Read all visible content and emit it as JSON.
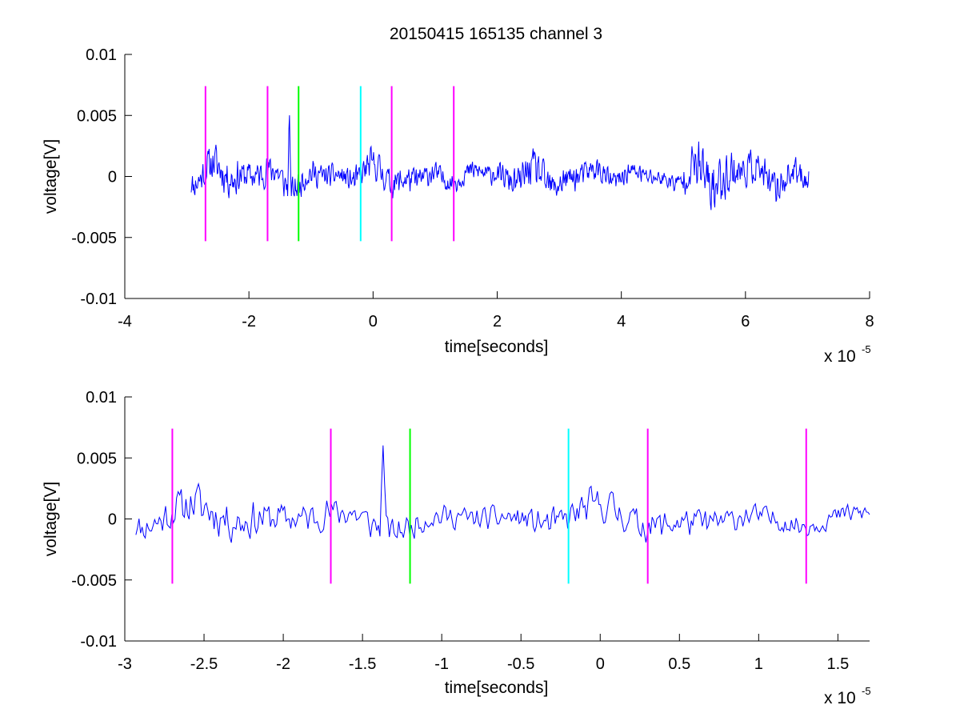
{
  "figure": {
    "background": "#ffffff",
    "trace_color": "#0000ff"
  },
  "chart_data": [
    {
      "type": "line",
      "title": "20150415 165135 channel 3",
      "xlabel": "time[seconds]",
      "ylabel": "voltage[V]",
      "x_exponent_base": "x 10",
      "x_exponent": "-5",
      "xlim": [
        -4,
        8
      ],
      "ylim": [
        -0.01,
        0.01
      ],
      "xticks": [
        -4,
        -2,
        0,
        2,
        4,
        6,
        8
      ],
      "xtick_labels": [
        "-4",
        "-2",
        "0",
        "2",
        "4",
        "6",
        "8"
      ],
      "yticks": [
        -0.01,
        -0.005,
        0,
        0.005,
        0.01
      ],
      "ytick_labels": [
        "-0.01",
        "-0.005",
        "0",
        "0.005",
        "0.01"
      ],
      "trace": {
        "x_start": -2.93,
        "x_end": 7.02,
        "points": 1000,
        "seed": 11,
        "envelope": [
          [
            -2.93,
            0.0012
          ],
          [
            -2.5,
            0.0018
          ],
          [
            -2.0,
            0.0013
          ],
          [
            -1.4,
            0.0014
          ],
          [
            -0.6,
            0.0009
          ],
          [
            0.0,
            0.0014
          ],
          [
            0.4,
            0.0013
          ],
          [
            1.2,
            0.0009
          ],
          [
            2.0,
            0.0009
          ],
          [
            2.6,
            0.0017
          ],
          [
            3.2,
            0.0012
          ],
          [
            4.0,
            0.0009
          ],
          [
            4.8,
            0.0007
          ],
          [
            5.2,
            0.002
          ],
          [
            5.5,
            0.0027
          ],
          [
            5.9,
            0.0016
          ],
          [
            6.5,
            0.0014
          ],
          [
            7.02,
            0.0012
          ]
        ],
        "spikes": [
          [
            -1.35,
            0.0063
          ]
        ]
      },
      "markers": [
        {
          "x": -2.7,
          "color": "#ff00ff",
          "y_range": [
            -0.0053,
            0.0074
          ]
        },
        {
          "x": -1.7,
          "color": "#ff00ff",
          "y_range": [
            -0.0053,
            0.0074
          ]
        },
        {
          "x": -1.2,
          "color": "#00ff00",
          "y_range": [
            -0.0053,
            0.0074
          ]
        },
        {
          "x": -0.2,
          "color": "#00ffff",
          "y_range": [
            -0.0053,
            0.0074
          ]
        },
        {
          "x": 0.3,
          "color": "#ff00ff",
          "y_range": [
            -0.0053,
            0.0074
          ]
        },
        {
          "x": 1.3,
          "color": "#ff00ff",
          "y_range": [
            -0.0053,
            0.0074
          ]
        }
      ]
    },
    {
      "type": "line",
      "xlabel": "time[seconds]",
      "ylabel": "voltage[V]",
      "x_exponent_base": "x 10",
      "x_exponent": "-5",
      "xlim": [
        -3.0,
        1.7
      ],
      "ylim": [
        -0.01,
        0.01
      ],
      "xticks": [
        -3,
        -2.5,
        -2,
        -1.5,
        -1,
        -0.5,
        0,
        0.5,
        1,
        1.5
      ],
      "xtick_labels": [
        "-3",
        "-2.5",
        "-2",
        "-1.5",
        "-1",
        "-0.5",
        "0",
        "0.5",
        "1",
        "1.5"
      ],
      "yticks": [
        -0.01,
        -0.005,
        0,
        0.005,
        0.01
      ],
      "ytick_labels": [
        "-0.01",
        "-0.005",
        "0",
        "0.005",
        "0.01"
      ],
      "trace": {
        "x_start": -2.93,
        "x_end": 1.7,
        "points": 470,
        "seed": 11,
        "envelope": [
          [
            -2.93,
            0.0012
          ],
          [
            -2.5,
            0.002
          ],
          [
            -2.0,
            0.0014
          ],
          [
            -1.5,
            0.0014
          ],
          [
            -1.0,
            0.001
          ],
          [
            -0.6,
            0.001
          ],
          [
            0.0,
            0.0016
          ],
          [
            0.4,
            0.0014
          ],
          [
            1.0,
            0.001
          ],
          [
            1.7,
            0.0009
          ]
        ],
        "spikes": [
          [
            -1.37,
            0.0061
          ]
        ]
      },
      "markers": [
        {
          "x": -2.7,
          "color": "#ff00ff",
          "y_range": [
            -0.0053,
            0.0074
          ]
        },
        {
          "x": -1.7,
          "color": "#ff00ff",
          "y_range": [
            -0.0053,
            0.0074
          ]
        },
        {
          "x": -1.2,
          "color": "#00ff00",
          "y_range": [
            -0.0053,
            0.0074
          ]
        },
        {
          "x": -0.2,
          "color": "#00ffff",
          "y_range": [
            -0.0053,
            0.0074
          ]
        },
        {
          "x": 0.3,
          "color": "#ff00ff",
          "y_range": [
            -0.0053,
            0.0074
          ]
        },
        {
          "x": 1.3,
          "color": "#ff00ff",
          "y_range": [
            -0.0053,
            0.0074
          ]
        }
      ]
    }
  ]
}
